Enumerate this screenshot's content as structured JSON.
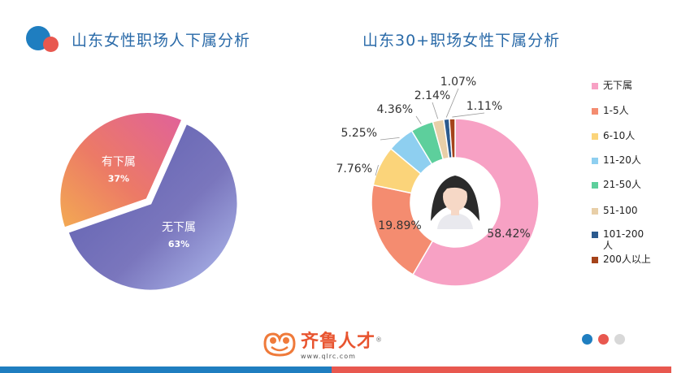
{
  "left_title": "山东女性职场人下属分析",
  "right_title": "山东30+职场女性下属分析",
  "brand": {
    "name": "齐鲁人才",
    "registered": "®",
    "url": "www.qlrc.com"
  },
  "chart_data": [
    {
      "type": "pie",
      "title": "山东女性职场人下属分析",
      "categories": [
        "无下属",
        "有下属"
      ],
      "values": [
        63,
        37
      ],
      "labels": [
        "63%",
        "37%"
      ],
      "colors": [
        "#6f6fb8",
        "#e0648c"
      ]
    },
    {
      "type": "pie",
      "subtype": "donut",
      "title": "山东30+职场女性下属分析",
      "categories": [
        "无下属",
        "1-5人",
        "6-10人",
        "11-20人",
        "21-50人",
        "51-100",
        "101-200人",
        "200人以上"
      ],
      "values": [
        58.42,
        19.89,
        7.76,
        5.25,
        4.36,
        2.14,
        1.07,
        1.11
      ],
      "labels": [
        "58.42%",
        "19.89%",
        "7.76%",
        "5.25%",
        "4.36%",
        "2.14%",
        "1.07%",
        "1.11%"
      ],
      "colors": [
        "#f7a1c4",
        "#f48c70",
        "#fbd47a",
        "#8ecff0",
        "#5dcf9c",
        "#e8cfa8",
        "#2b5a8e",
        "#a5431a"
      ],
      "legend_position": "right"
    }
  ],
  "colors": {
    "title": "#2a6aa8",
    "accent_blue": "#1f7ec0",
    "accent_red": "#e8584f"
  }
}
